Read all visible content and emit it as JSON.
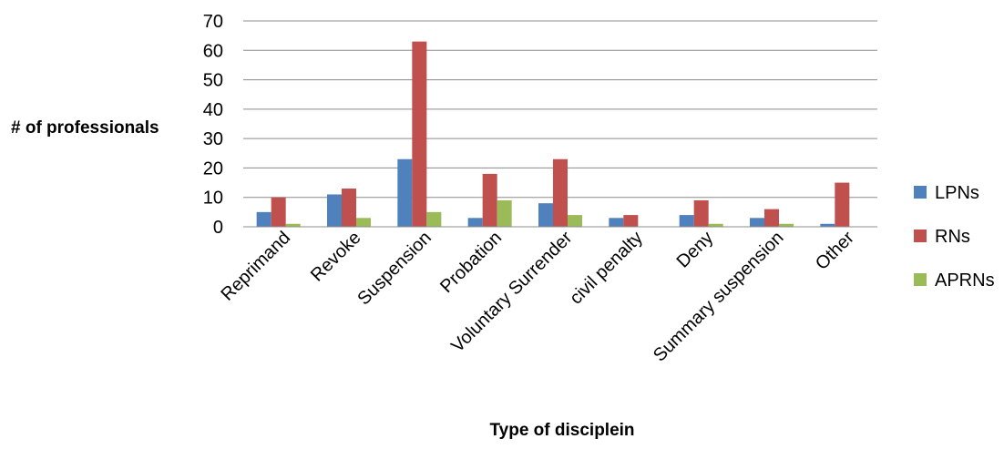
{
  "chart_data": {
    "type": "bar",
    "title": "",
    "xlabel": "Type of disciplein",
    "ylabel": "# of professionals",
    "ylim": [
      0,
      70
    ],
    "yticks": [
      0,
      10,
      20,
      30,
      40,
      50,
      60,
      70
    ],
    "grid": true,
    "legend_position": "right",
    "categories": [
      "Reprimand",
      "Revoke",
      "Suspension",
      "Probation",
      "Voluntary Surrender",
      "civil penalty",
      "Deny",
      "Summary suspension",
      "Other"
    ],
    "series": [
      {
        "name": "LPNs",
        "color": "#4F81BD",
        "values": [
          5,
          11,
          23,
          3,
          8,
          3,
          4,
          3,
          1
        ]
      },
      {
        "name": "RNs",
        "color": "#C0504D",
        "values": [
          10,
          13,
          63,
          18,
          23,
          4,
          9,
          6,
          15
        ]
      },
      {
        "name": "APRNs",
        "color": "#9BBB59",
        "values": [
          1,
          3,
          5,
          9,
          4,
          0,
          1,
          1,
          0
        ]
      }
    ]
  }
}
